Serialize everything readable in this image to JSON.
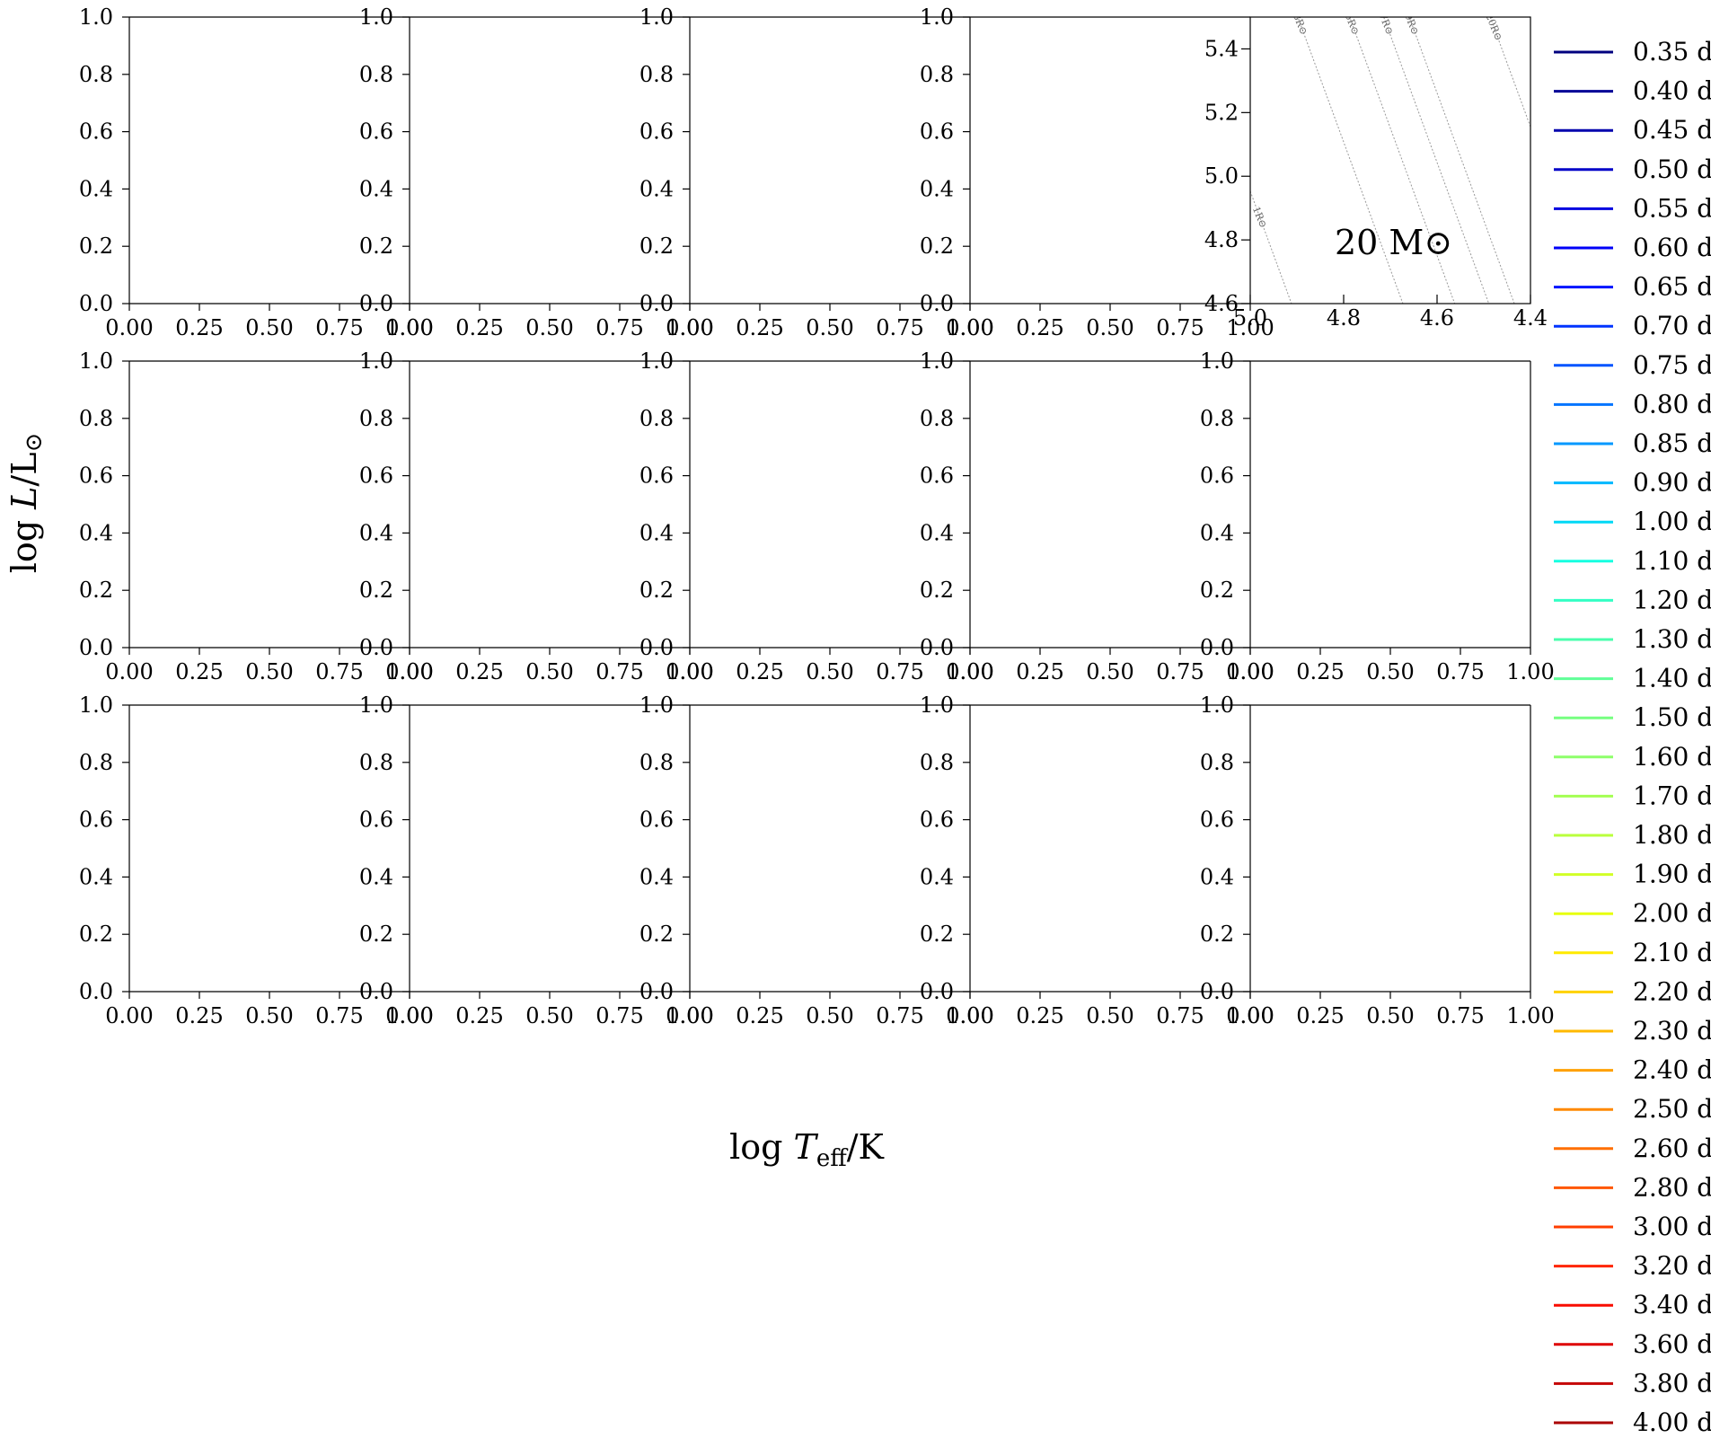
{
  "chart_data": {
    "type": "line",
    "xlabel": "log T_eff/K",
    "ylabel": "log L/L⊙",
    "grid": false,
    "legend_position": "right",
    "layout": {
      "rows": 3,
      "cols": 5
    },
    "empty_panel": {
      "xlim": [
        0.0,
        1.0
      ],
      "ylim": [
        0.0,
        1.0
      ],
      "xticks": [
        "0.00",
        "0.25",
        "0.50",
        "0.75",
        "1.00"
      ],
      "yticks": [
        "0.0",
        "0.2",
        "0.4",
        "0.6",
        "0.8",
        "1.0"
      ]
    },
    "hr_panel": {
      "mass_label": "20 M⊙",
      "xlim": [
        5.0,
        4.4
      ],
      "ylim": [
        4.6,
        5.5
      ],
      "xticks": [
        "5.0",
        "4.8",
        "4.6",
        "4.4"
      ],
      "yticks": [
        "4.6",
        "4.8",
        "5.0",
        "5.2",
        "5.4"
      ],
      "radius_isolines": [
        {
          "label": "1R⊙",
          "radius": 1
        },
        {
          "label": "3R⊙",
          "radius": 3
        },
        {
          "label": "5R⊙",
          "radius": 5
        },
        {
          "label": "7R⊙",
          "radius": 7
        },
        {
          "label": "9R⊙",
          "radius": 9
        },
        {
          "label": "20R⊙",
          "radius": 20
        }
      ]
    },
    "legend": [
      {
        "label": "0.35 d",
        "color": "#00007f"
      },
      {
        "label": "0.40 d",
        "color": "#000096"
      },
      {
        "label": "0.45 d",
        "color": "#0000ad"
      },
      {
        "label": "0.50 d",
        "color": "#0000c8"
      },
      {
        "label": "0.55 d",
        "color": "#0000e0"
      },
      {
        "label": "0.60 d",
        "color": "#0000f8"
      },
      {
        "label": "0.65 d",
        "color": "#0014ff"
      },
      {
        "label": "0.70 d",
        "color": "#0034ff"
      },
      {
        "label": "0.75 d",
        "color": "#0054ff"
      },
      {
        "label": "0.80 d",
        "color": "#0074ff"
      },
      {
        "label": "0.85 d",
        "color": "#0098ff"
      },
      {
        "label": "0.90 d",
        "color": "#00b8ff"
      },
      {
        "label": "1.00 d",
        "color": "#00d8f6"
      },
      {
        "label": "1.10 d",
        "color": "#16ffe1"
      },
      {
        "label": "1.20 d",
        "color": "#33ffc4"
      },
      {
        "label": "1.30 d",
        "color": "#49ffad"
      },
      {
        "label": "1.40 d",
        "color": "#60ff97"
      },
      {
        "label": "1.50 d",
        "color": "#76ff80"
      },
      {
        "label": "1.60 d",
        "color": "#8dff6a"
      },
      {
        "label": "1.70 d",
        "color": "#a4ff53"
      },
      {
        "label": "1.80 d",
        "color": "#baff3c"
      },
      {
        "label": "1.90 d",
        "color": "#d1ff26"
      },
      {
        "label": "2.00 d",
        "color": "#e7ff0f"
      },
      {
        "label": "2.10 d",
        "color": "#ffea00"
      },
      {
        "label": "2.20 d",
        "color": "#ffd200"
      },
      {
        "label": "2.30 d",
        "color": "#ffb900"
      },
      {
        "label": "2.40 d",
        "color": "#ffa000"
      },
      {
        "label": "2.50 d",
        "color": "#ff8800"
      },
      {
        "label": "2.60 d",
        "color": "#ff6f00"
      },
      {
        "label": "2.80 d",
        "color": "#ff5700"
      },
      {
        "label": "3.00 d",
        "color": "#ff3e00"
      },
      {
        "label": "3.20 d",
        "color": "#ff2500"
      },
      {
        "label": "3.40 d",
        "color": "#f80d00"
      },
      {
        "label": "3.60 d",
        "color": "#de0000"
      },
      {
        "label": "3.80 d",
        "color": "#c40000"
      },
      {
        "label": "4.00 d",
        "color": "#ab0000"
      }
    ]
  }
}
